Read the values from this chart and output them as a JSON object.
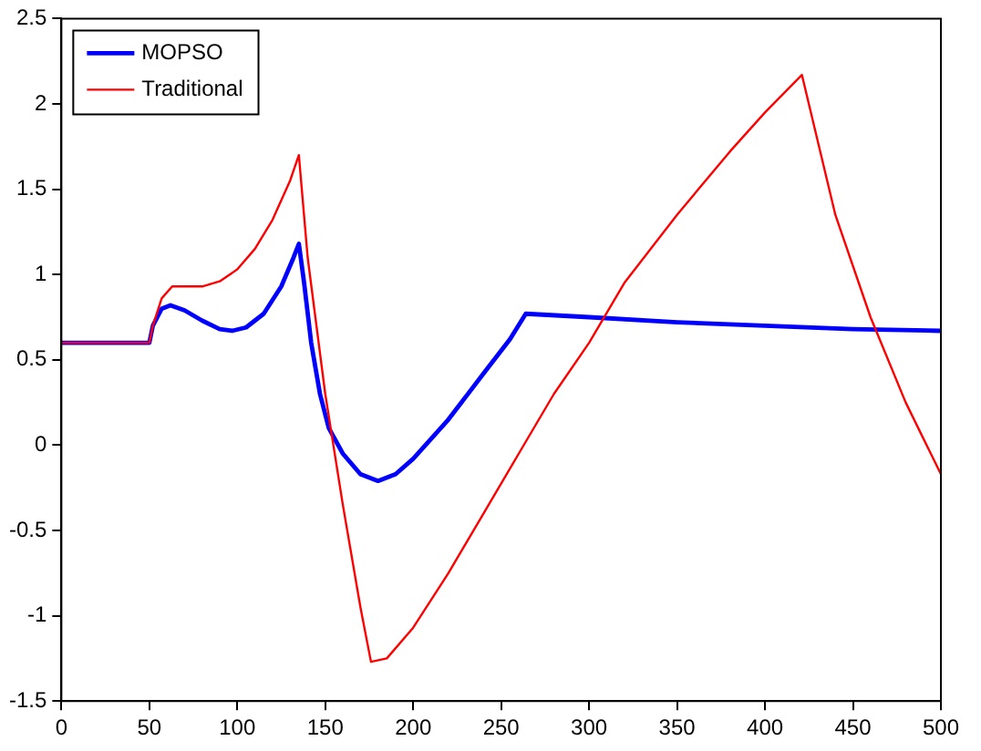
{
  "chart_data": {
    "type": "line",
    "xlim": [
      0,
      500
    ],
    "xticks": [
      0,
      50,
      100,
      150,
      200,
      250,
      300,
      350,
      400,
      450,
      500
    ],
    "ylim": [
      -1.5,
      2.5
    ],
    "yticks": [
      -1.5,
      -1,
      -0.5,
      0,
      0.5,
      1,
      1.5,
      2,
      2.5
    ],
    "grid": false,
    "legend": "top left",
    "marker": "none",
    "line_style": "solid",
    "series": [
      {
        "name": "MOPSO",
        "color": "#0000ff",
        "x": [
          0,
          50,
          52,
          57,
          62,
          70,
          80,
          90,
          97,
          105,
          115,
          125,
          132,
          135,
          138,
          142,
          147,
          152,
          160,
          170,
          180,
          190,
          200,
          220,
          240,
          255,
          264,
          300,
          350,
          400,
          450,
          500
        ],
        "values": [
          0.6,
          0.6,
          0.7,
          0.8,
          0.82,
          0.79,
          0.73,
          0.68,
          0.67,
          0.69,
          0.77,
          0.93,
          1.1,
          1.18,
          0.95,
          0.6,
          0.3,
          0.1,
          -0.05,
          -0.17,
          -0.21,
          -0.17,
          -0.08,
          0.15,
          0.42,
          0.62,
          0.77,
          0.75,
          0.72,
          0.7,
          0.68,
          0.67
        ]
      },
      {
        "name": "Traditional",
        "color": "#ff0000",
        "x": [
          0,
          50,
          52,
          57,
          63,
          75,
          80,
          90,
          100,
          110,
          120,
          130,
          135,
          140,
          150,
          160,
          170,
          176,
          185,
          200,
          220,
          240,
          260,
          280,
          300,
          320,
          350,
          380,
          400,
          421,
          440,
          460,
          480,
          500
        ],
        "values": [
          0.6,
          0.6,
          0.7,
          0.86,
          0.93,
          0.93,
          0.93,
          0.96,
          1.03,
          1.15,
          1.32,
          1.55,
          1.7,
          1.1,
          0.3,
          -0.35,
          -0.95,
          -1.27,
          -1.25,
          -1.07,
          -0.75,
          -0.4,
          -0.05,
          0.3,
          0.6,
          0.95,
          1.35,
          1.72,
          1.95,
          2.17,
          1.35,
          0.75,
          0.25,
          -0.17
        ]
      }
    ]
  }
}
